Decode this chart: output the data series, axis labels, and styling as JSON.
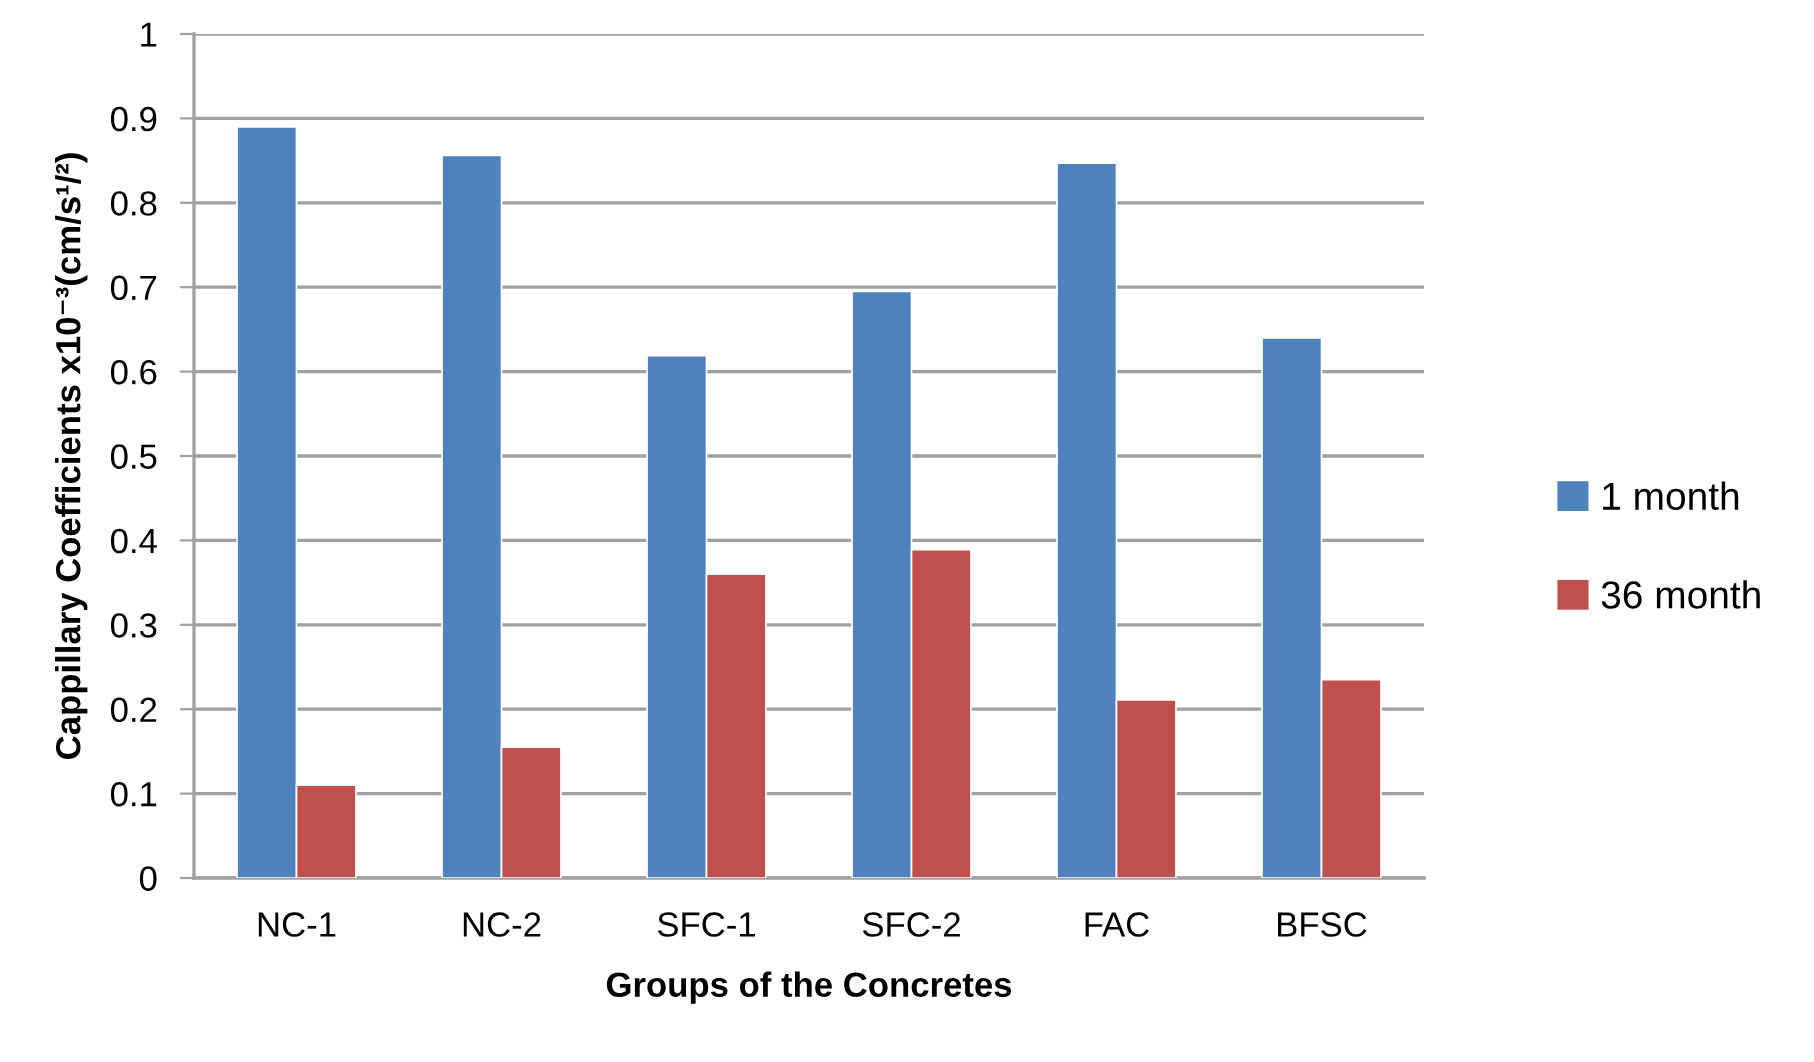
{
  "chart_data": {
    "type": "bar",
    "xlabel": "Groups of the Concretes",
    "ylabel": "Cappillary Coefficients x10⁻³(cm/s¹/²)",
    "categories": [
      "NC-1",
      "NC-2",
      "SFC-1",
      "SFC-2",
      "FAC",
      "BFSC"
    ],
    "series": [
      {
        "name": "1 month",
        "color": "#4f81bd",
        "values": [
          0.89,
          0.856,
          0.619,
          0.695,
          0.847,
          0.64
        ]
      },
      {
        "name": "36 month",
        "color": "#c0504d",
        "values": [
          0.11,
          0.155,
          0.36,
          0.389,
          0.211,
          0.235
        ]
      }
    ],
    "ylim": [
      0,
      1
    ],
    "yticks": [
      0,
      0.1,
      0.2,
      0.3,
      0.4,
      0.5,
      0.6,
      0.7,
      0.8,
      0.9,
      1
    ],
    "grid": "y",
    "legend": "right"
  }
}
